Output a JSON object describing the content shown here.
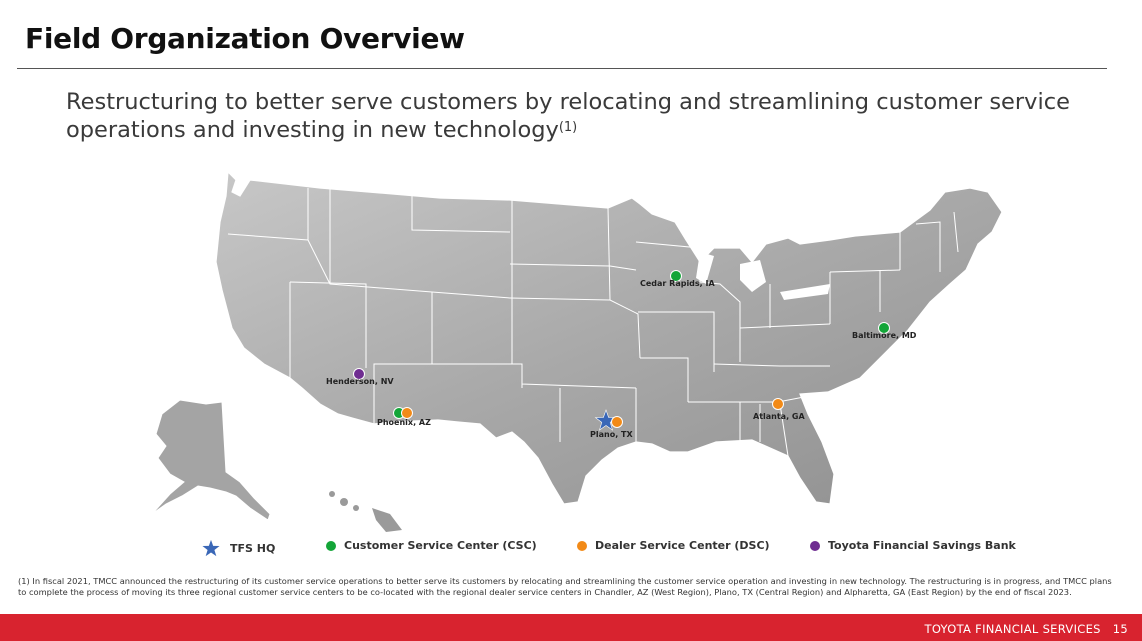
{
  "title": "Field Organization Overview",
  "subtitle": {
    "text": "Restructuring to better serve customers by relocating and streamlining customer service operations and investing in new technology",
    "footnote_ref": "(1)"
  },
  "colors": {
    "csc": "#13a538",
    "dsc": "#f28a17",
    "bank": "#6f2d91",
    "hq": "#3a67b7",
    "footer": "#d8232f"
  },
  "locations": [
    {
      "label": "Cedar Rapids, IA"
    },
    {
      "label": "Baltimore, MD"
    },
    {
      "label": "Henderson, NV"
    },
    {
      "label": "Phoenix, AZ"
    },
    {
      "label": "Atlanta, GA"
    },
    {
      "label": "Plano, TX"
    }
  ],
  "legend": {
    "hq": "TFS HQ",
    "csc": "Customer Service Center (CSC)",
    "dsc": "Dealer Service Center (DSC)",
    "bank": "Toyota Financial Savings Bank"
  },
  "footnote": "(1) In fiscal 2021, TMCC announced the restructuring of its customer service operations to better serve its customers by relocating and streamlining the customer service operation and investing in new technology. The restructuring is in progress, and TMCC plans to complete the process of moving its three regional customer service centers to be co-located with the regional dealer service centers in Chandler, AZ (West Region), Plano, TX (Central Region) and Alpharetta, GA (East Region) by the end of fiscal 2023.",
  "footer": {
    "company": "TOYOTA FINANCIAL SERVICES",
    "page": "15"
  }
}
